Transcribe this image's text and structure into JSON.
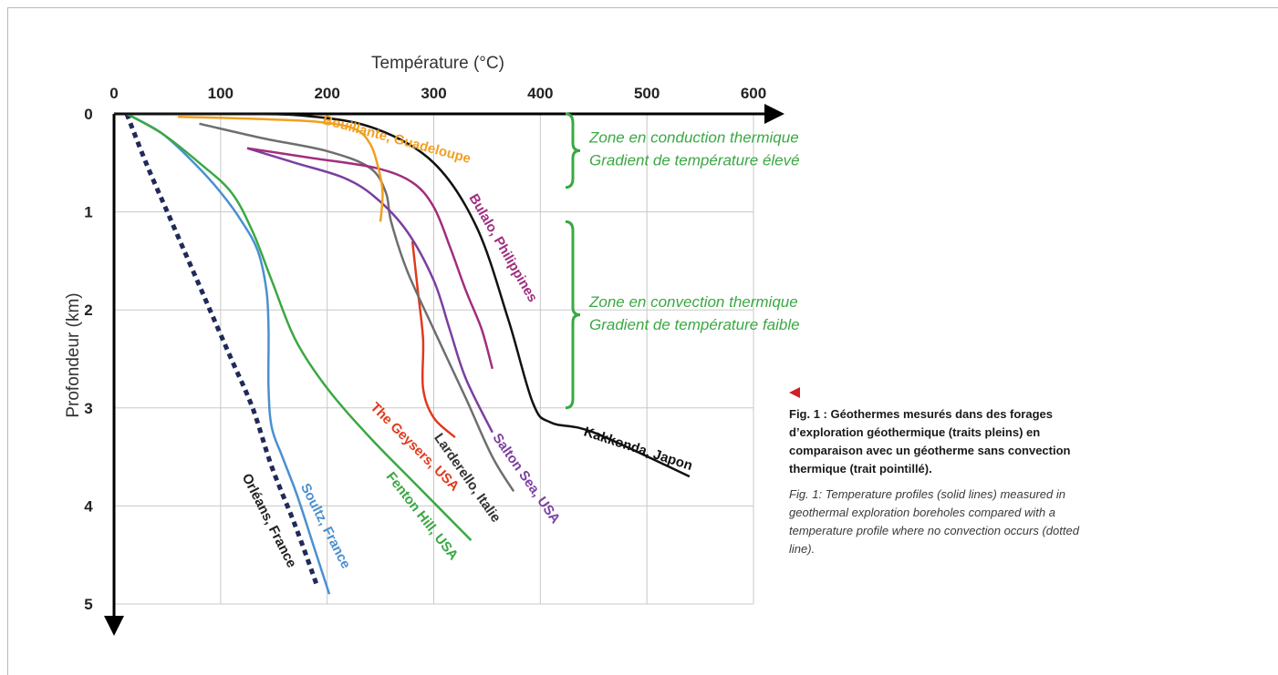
{
  "chart_data": {
    "type": "line",
    "title": "",
    "xlabel": "Température (°C)",
    "ylabel": "Profondeur (km)",
    "xlim": [
      0,
      600
    ],
    "ylim": [
      0,
      5
    ],
    "y_inverted": true,
    "x_ticks": [
      0,
      100,
      200,
      300,
      400,
      500,
      600
    ],
    "y_ticks": [
      0,
      1,
      2,
      3,
      4,
      5
    ],
    "grid": true,
    "series": [
      {
        "name": "Orléans, France",
        "color": "#1f2a5a",
        "dashed": true,
        "label_pos": [
          120,
          3.7
        ],
        "label_angle": 63,
        "label_color": "#222222",
        "points": [
          [
            12,
            0
          ],
          [
            30,
            0.5
          ],
          [
            50,
            1.0
          ],
          [
            70,
            1.5
          ],
          [
            90,
            2.0
          ],
          [
            110,
            2.5
          ],
          [
            130,
            3.0
          ],
          [
            148,
            3.6
          ],
          [
            170,
            4.2
          ],
          [
            190,
            4.8
          ]
        ]
      },
      {
        "name": "Soultz, France",
        "color": "#4a90d0",
        "label_pos": [
          175,
          3.8
        ],
        "label_angle": 63,
        "label_color": "#4a90d0",
        "points": [
          [
            12,
            0
          ],
          [
            45,
            0.2
          ],
          [
            75,
            0.5
          ],
          [
            100,
            0.8
          ],
          [
            120,
            1.1
          ],
          [
            135,
            1.4
          ],
          [
            143,
            1.8
          ],
          [
            145,
            2.2
          ],
          [
            145,
            2.8
          ],
          [
            148,
            3.2
          ],
          [
            158,
            3.5
          ],
          [
            172,
            3.9
          ],
          [
            190,
            4.5
          ],
          [
            202,
            4.9
          ]
        ]
      },
      {
        "name": "Fenton Hill, USA",
        "color": "#3aa843",
        "label_pos": [
          255,
          3.7
        ],
        "label_angle": 52,
        "label_color": "#3aa843",
        "points": [
          [
            12,
            0
          ],
          [
            45,
            0.2
          ],
          [
            80,
            0.5
          ],
          [
            110,
            0.8
          ],
          [
            130,
            1.2
          ],
          [
            148,
            1.7
          ],
          [
            170,
            2.3
          ],
          [
            200,
            2.8
          ],
          [
            240,
            3.3
          ],
          [
            285,
            3.8
          ],
          [
            335,
            4.35
          ]
        ]
      },
      {
        "name": "The Geysers, USA",
        "color": "#e03a1c",
        "label_pos": [
          240,
          3.0
        ],
        "label_angle": 45,
        "label_color": "#e03a1c",
        "points": [
          [
            280,
            1.3
          ],
          [
            285,
            1.8
          ],
          [
            290,
            2.3
          ],
          [
            290,
            2.8
          ],
          [
            300,
            3.1
          ],
          [
            320,
            3.3
          ]
        ]
      },
      {
        "name": "Larderello, Italie",
        "color": "#6e6e6e",
        "label_pos": [
          300,
          3.3
        ],
        "label_angle": 55,
        "label_color": "#333333",
        "points": [
          [
            80,
            0.1
          ],
          [
            140,
            0.25
          ],
          [
            200,
            0.38
          ],
          [
            240,
            0.55
          ],
          [
            255,
            0.8
          ],
          [
            260,
            1.1
          ],
          [
            275,
            1.6
          ],
          [
            300,
            2.2
          ],
          [
            330,
            2.9
          ],
          [
            355,
            3.5
          ],
          [
            375,
            3.85
          ]
        ]
      },
      {
        "name": "Salton Sea, USA",
        "color": "#7b3fa0",
        "label_pos": [
          355,
          3.3
        ],
        "label_angle": 55,
        "label_color": "#7b3fa0",
        "points": [
          [
            125,
            0.35
          ],
          [
            170,
            0.5
          ],
          [
            215,
            0.65
          ],
          [
            245,
            0.85
          ],
          [
            275,
            1.2
          ],
          [
            300,
            1.7
          ],
          [
            315,
            2.2
          ],
          [
            330,
            2.7
          ],
          [
            355,
            3.25
          ]
        ]
      },
      {
        "name": "Bulalo, Philippines",
        "color": "#a02e7e",
        "label_pos": [
          333,
          0.85
        ],
        "label_angle": 60,
        "label_color": "#a02e7e",
        "points": [
          [
            125,
            0.35
          ],
          [
            185,
            0.45
          ],
          [
            245,
            0.55
          ],
          [
            280,
            0.7
          ],
          [
            300,
            0.95
          ],
          [
            315,
            1.35
          ],
          [
            330,
            1.8
          ],
          [
            345,
            2.2
          ],
          [
            355,
            2.6
          ]
        ]
      },
      {
        "name": "Kakkonda, Japon",
        "color": "#111111",
        "label_pos": [
          440,
          3.28
        ],
        "label_angle": 18,
        "label_color": "#111111",
        "points": [
          [
            0,
            0
          ],
          [
            100,
            0
          ],
          [
            180,
            0.02
          ],
          [
            245,
            0.15
          ],
          [
            300,
            0.5
          ],
          [
            340,
            1.15
          ],
          [
            370,
            2.1
          ],
          [
            393,
            2.95
          ],
          [
            410,
            3.15
          ],
          [
            450,
            3.25
          ],
          [
            540,
            3.7
          ]
        ]
      },
      {
        "name": "Bouillante, Guadeloupe",
        "color": "#f0a020",
        "label_pos": [
          195,
          0.1
        ],
        "label_angle": 15,
        "label_color": "#f0a020",
        "points": [
          [
            60,
            0.03
          ],
          [
            130,
            0.05
          ],
          [
            190,
            0.08
          ],
          [
            225,
            0.15
          ],
          [
            240,
            0.3
          ],
          [
            248,
            0.55
          ],
          [
            252,
            0.8
          ],
          [
            250,
            1.1
          ]
        ]
      }
    ],
    "zone_annotations": [
      {
        "line1": "Zone en conduction thermique",
        "line2": "Gradient de température élevé",
        "bracket_y": [
          0,
          0.75
        ],
        "text_y": 0.32
      },
      {
        "line1": "Zone en convection thermique",
        "line2": "Gradient de température faible",
        "bracket_y": [
          1.1,
          3.0
        ],
        "text_y": 2.0
      }
    ]
  },
  "caption": {
    "fr": "Fig. 1 : Géothermes mesurés dans des forages d’exploration géothermique (traits pleins) en comparaison avec un géotherme sans convection thermique (trait pointillé).",
    "en": "Fig. 1: Temperature profiles (solid lines) measured in geothermal exploration boreholes compared with a temperature profile where no convection occurs (dotted line).",
    "marker_color": "#d21f26"
  },
  "colors": {
    "grid": "#c8c8c8",
    "axis": "#000000",
    "zone_green": "#3aa843"
  }
}
